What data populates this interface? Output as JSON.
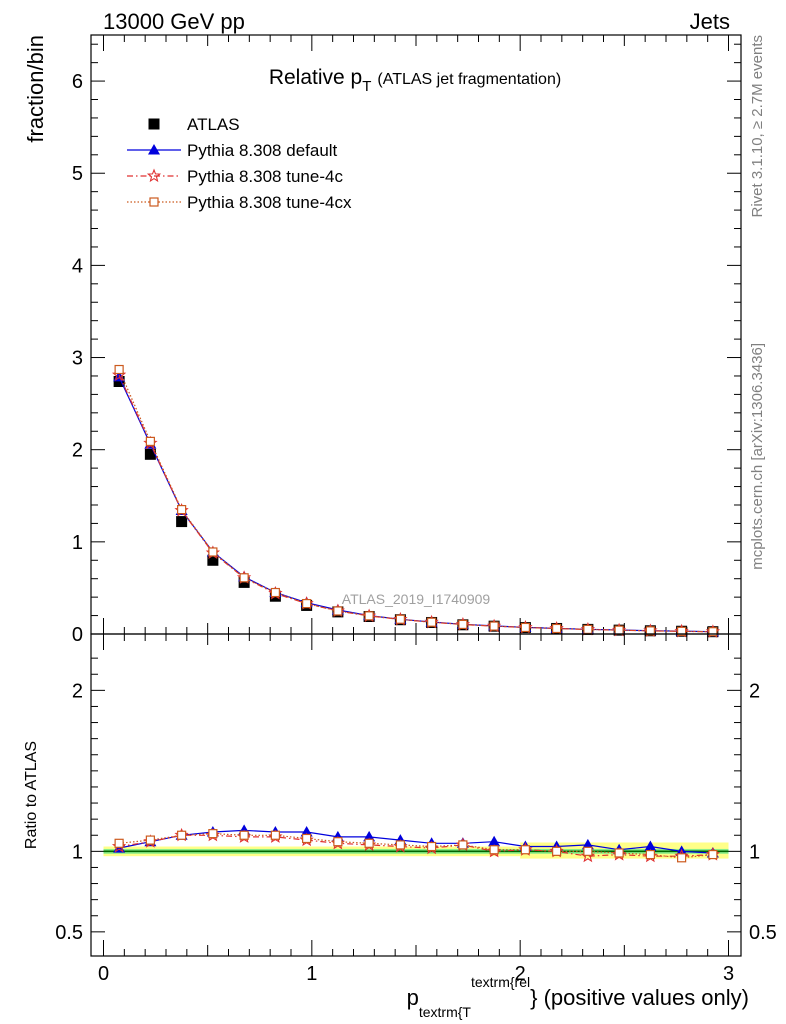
{
  "header": {
    "left": "13000 GeV pp",
    "right": "Jets"
  },
  "side_text": {
    "rivet": "Rivet 3.1.10, ≥ 2.7M events",
    "source": "mcplots.cern.ch [arXiv:1306.3436]"
  },
  "watermark": "ATLAS_2019_I1740909",
  "colors": {
    "data": "#000000",
    "default": "#0000dd",
    "tune4c": "#e03030",
    "tune4cx": "#cc5a1e",
    "band_inner": "#88ee88",
    "band_outer": "#ffff88",
    "ratio_line": "#006600"
  },
  "chart_data": [
    {
      "type": "line",
      "title": "Relative p",
      "title_sub": "T",
      "title_suffix": "(ATLAS jet fragmentation)",
      "ylabel": "fraction/bin",
      "xlim": [
        -0.06,
        3.06
      ],
      "ylim": [
        0,
        6.5
      ],
      "yticks": [
        0,
        1,
        2,
        3,
        4,
        5,
        6
      ],
      "x": [
        0.075,
        0.225,
        0.375,
        0.525,
        0.675,
        0.825,
        0.975,
        1.125,
        1.275,
        1.425,
        1.575,
        1.725,
        1.875,
        2.025,
        2.175,
        2.325,
        2.475,
        2.625,
        2.775,
        2.925
      ],
      "legend_position": "top-left",
      "series": [
        {
          "name": "ATLAS",
          "marker": "square",
          "values": [
            2.74,
            1.95,
            1.22,
            0.8,
            0.56,
            0.41,
            0.31,
            0.24,
            0.19,
            0.155,
            0.125,
            0.1,
            0.085,
            0.07,
            0.06,
            0.05,
            0.042,
            0.035,
            0.03,
            0.025
          ]
        },
        {
          "name": "Pythia 8.308 default",
          "marker": "triangle",
          "values": [
            2.79,
            2.06,
            1.34,
            0.89,
            0.62,
            0.45,
            0.34,
            0.26,
            0.2,
            0.16,
            0.13,
            0.105,
            0.088,
            0.072,
            0.061,
            0.051,
            0.043,
            0.036,
            0.031,
            0.025
          ]
        },
        {
          "name": "Pythia 8.308 tune-4c",
          "marker": "star",
          "values": [
            2.81,
            2.07,
            1.34,
            0.88,
            0.61,
            0.44,
            0.33,
            0.25,
            0.195,
            0.158,
            0.127,
            0.103,
            0.085,
            0.071,
            0.06,
            0.049,
            0.041,
            0.034,
            0.029,
            0.024
          ]
        },
        {
          "name": "Pythia 8.308 tune-4cx",
          "marker": "open-square",
          "values": [
            2.87,
            2.09,
            1.35,
            0.89,
            0.61,
            0.45,
            0.33,
            0.25,
            0.197,
            0.16,
            0.128,
            0.104,
            0.086,
            0.071,
            0.06,
            0.05,
            0.042,
            0.034,
            0.029,
            0.025
          ]
        }
      ]
    },
    {
      "type": "line",
      "ylabel": "Ratio to ATLAS",
      "xlabel": "p",
      "xlabel_sub": "textrm{T",
      "xlabel_sup": "textrm{rel",
      "xlabel_suffix": "} (positive values only)",
      "xlim": [
        -0.06,
        3.06
      ],
      "ylim": [
        0.35,
        2.35
      ],
      "yticks": [
        0.5,
        1,
        2
      ],
      "xticks": [
        0,
        1,
        2,
        3
      ],
      "x": [
        0.075,
        0.225,
        0.375,
        0.525,
        0.675,
        0.825,
        0.975,
        1.125,
        1.275,
        1.425,
        1.575,
        1.725,
        1.875,
        2.025,
        2.175,
        2.325,
        2.475,
        2.625,
        2.775,
        2.925
      ],
      "band_inner": [
        0.985,
        1.015
      ],
      "band_outer": [
        0.97,
        1.03
      ],
      "band_outer_tail": [
        0.955,
        1.055
      ],
      "series": [
        {
          "name": "Pythia 8.308 default",
          "values": [
            1.02,
            1.06,
            1.1,
            1.12,
            1.13,
            1.12,
            1.12,
            1.09,
            1.09,
            1.07,
            1.05,
            1.05,
            1.06,
            1.03,
            1.03,
            1.04,
            1.01,
            1.03,
            1.0,
            0.99
          ]
        },
        {
          "name": "Pythia 8.308 tune-4c",
          "values": [
            1.03,
            1.06,
            1.1,
            1.1,
            1.09,
            1.09,
            1.07,
            1.05,
            1.04,
            1.03,
            1.02,
            1.04,
            1.0,
            1.01,
            1.0,
            0.97,
            0.98,
            0.97,
            0.97,
            0.98
          ]
        },
        {
          "name": "Pythia 8.308 tune-4cx",
          "values": [
            1.05,
            1.07,
            1.1,
            1.11,
            1.1,
            1.1,
            1.08,
            1.06,
            1.05,
            1.04,
            1.03,
            1.04,
            1.01,
            1.01,
            1.0,
            1.0,
            0.99,
            0.98,
            0.96,
            0.98
          ]
        }
      ]
    }
  ]
}
